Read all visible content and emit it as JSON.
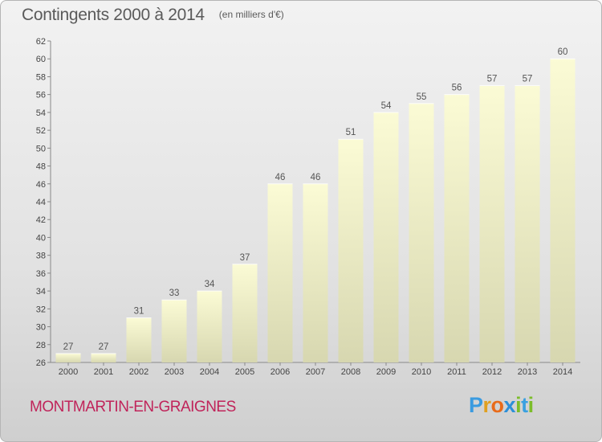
{
  "header": {
    "title": "Contingents 2000 à 2014",
    "subtitle": "(en milliers d'€)"
  },
  "footer": {
    "commune": "MONTMARTIN-EN-GRAIGNES",
    "logo_letters": [
      "P",
      "r",
      "o",
      "x",
      "i",
      "t",
      "i"
    ]
  },
  "colors": {
    "bar_top": "#fbfbd5",
    "bar_bottom": "#d7d7b0",
    "axis": "#888888",
    "commune_text": "#c0245a",
    "logo": [
      "#3a9be0",
      "#e0a020",
      "#e86b1a",
      "#2c8fd8",
      "#7cbd2a",
      "#39a0e0",
      "#7cbd2a"
    ]
  },
  "chart_data": {
    "type": "bar",
    "title": "Contingents 2000 à 2014",
    "subtitle": "(en milliers d'€)",
    "categories": [
      "2000",
      "2001",
      "2002",
      "2003",
      "2004",
      "2005",
      "2006",
      "2007",
      "2008",
      "2009",
      "2010",
      "2011",
      "2012",
      "2013",
      "2014"
    ],
    "values": [
      27,
      27,
      31,
      33,
      34,
      37,
      46,
      46,
      51,
      54,
      55,
      56,
      57,
      57,
      60
    ],
    "ylim": [
      26,
      62
    ],
    "yticks": [
      26,
      28,
      30,
      32,
      34,
      36,
      38,
      40,
      42,
      44,
      46,
      48,
      50,
      52,
      54,
      56,
      58,
      60,
      62
    ],
    "grid": false,
    "legend": "none"
  }
}
